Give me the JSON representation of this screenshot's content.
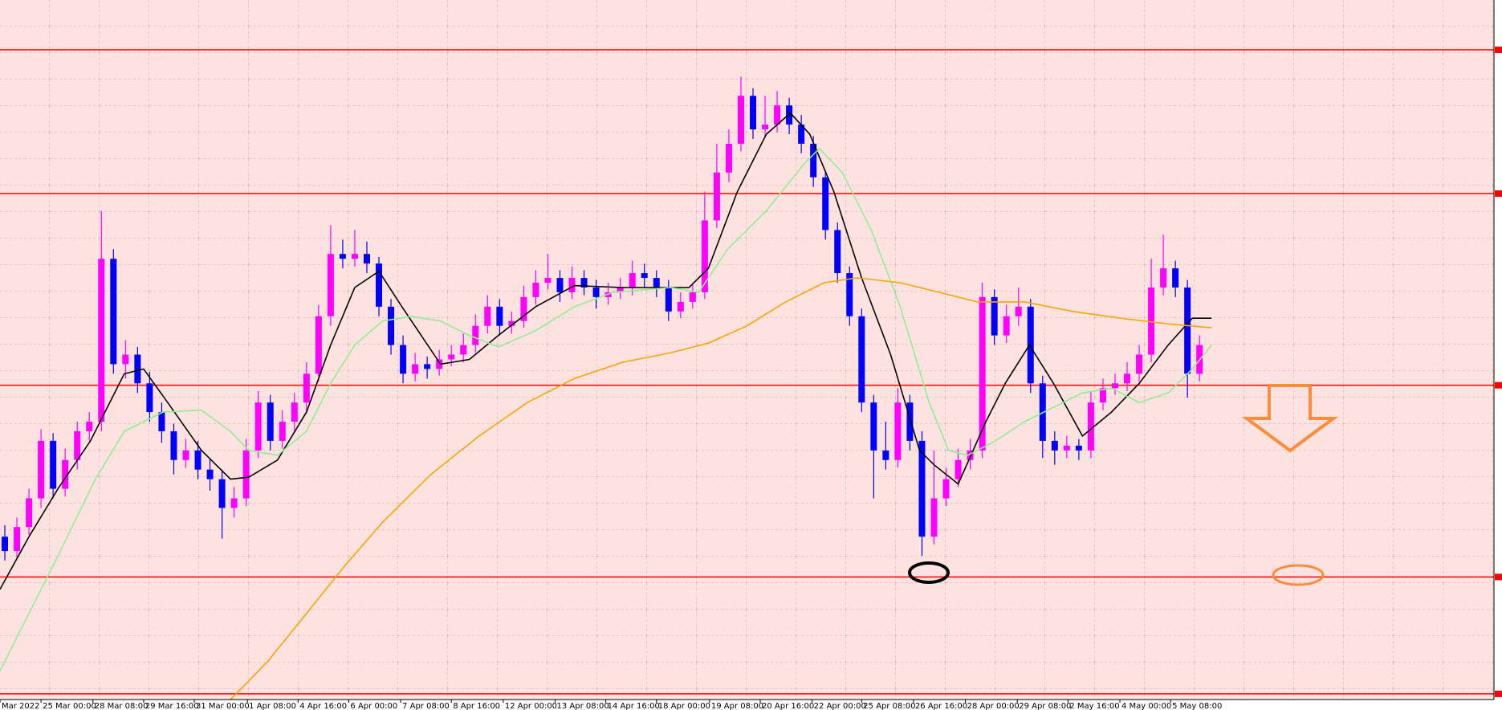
{
  "chart_data": {
    "type": "candlestick",
    "grid": true,
    "up_color": "#ff00ff",
    "down_color": "#0000ff",
    "xlim": [
      -0.4,
      123.4
    ],
    "ylim": [
      0,
      740
    ],
    "xticks": [
      {
        "value": -0.4,
        "label": "Mar 2022"
      },
      {
        "value": 3,
        "label": "25 Mar 00:00"
      },
      {
        "value": 7.3,
        "label": "28 Mar 08:00"
      },
      {
        "value": 11.5,
        "label": "29 Mar 16:00"
      },
      {
        "value": 15.7,
        "label": "31 Mar 00:00"
      },
      {
        "value": 20.1,
        "label": "1 Apr 08:00"
      },
      {
        "value": 24.3,
        "label": "4 Apr 16:00"
      },
      {
        "value": 28.5,
        "label": "6 Apr 00:00"
      },
      {
        "value": 32.8,
        "label": "7 Apr 08:00"
      },
      {
        "value": 37,
        "label": "8 Apr 16:00"
      },
      {
        "value": 41.3,
        "label": "12 Apr 00:00"
      },
      {
        "value": 45.6,
        "label": "13 Apr 08:00"
      },
      {
        "value": 49.8,
        "label": "14 Apr 16:00"
      },
      {
        "value": 54,
        "label": "18 Apr 00:00"
      },
      {
        "value": 58.4,
        "label": "19 Apr 08:00"
      },
      {
        "value": 62.6,
        "label": "20 Apr 16:00"
      },
      {
        "value": 66.9,
        "label": "22 Apr 00:00"
      },
      {
        "value": 71,
        "label": "25 Apr 08:00"
      },
      {
        "value": 75.3,
        "label": "26 Apr 16:00"
      },
      {
        "value": 79.6,
        "label": "28 Apr 00:00"
      },
      {
        "value": 83.9,
        "label": "29 Apr 08:00"
      },
      {
        "value": 88.1,
        "label": "2 May 16:00"
      },
      {
        "value": 92.4,
        "label": "4 May 00:00"
      },
      {
        "value": 96.6,
        "label": "5 May 08:00"
      }
    ],
    "levels": [
      688,
      538,
      338,
      138,
      16
    ],
    "level_color": "#ff0000",
    "ohlc": [
      [
        180,
        192,
        155,
        165
      ],
      [
        165,
        200,
        158,
        190
      ],
      [
        190,
        230,
        182,
        220
      ],
      [
        220,
        292,
        210,
        280
      ],
      [
        280,
        288,
        220,
        230
      ],
      [
        230,
        272,
        222,
        260
      ],
      [
        260,
        300,
        250,
        290
      ],
      [
        290,
        310,
        280,
        300
      ],
      [
        300,
        520,
        290,
        470
      ],
      [
        470,
        480,
        350,
        360
      ],
      [
        360,
        385,
        345,
        370
      ],
      [
        370,
        378,
        330,
        340
      ],
      [
        340,
        352,
        300,
        310
      ],
      [
        310,
        320,
        278,
        290
      ],
      [
        290,
        298,
        245,
        260
      ],
      [
        260,
        282,
        252,
        270
      ],
      [
        270,
        280,
        240,
        250
      ],
      [
        250,
        262,
        228,
        240
      ],
      [
        240,
        250,
        178,
        210
      ],
      [
        210,
        232,
        200,
        220
      ],
      [
        220,
        282,
        212,
        270
      ],
      [
        270,
        332,
        262,
        320
      ],
      [
        320,
        328,
        270,
        280
      ],
      [
        280,
        312,
        272,
        300
      ],
      [
        300,
        330,
        290,
        320
      ],
      [
        320,
        362,
        310,
        350
      ],
      [
        350,
        422,
        342,
        410
      ],
      [
        410,
        505,
        400,
        475
      ],
      [
        475,
        490,
        460,
        470
      ],
      [
        470,
        500,
        462,
        475
      ],
      [
        475,
        488,
        455,
        465
      ],
      [
        465,
        472,
        410,
        420
      ],
      [
        420,
        428,
        370,
        380
      ],
      [
        380,
        390,
        340,
        350
      ],
      [
        350,
        372,
        342,
        360
      ],
      [
        360,
        368,
        345,
        355
      ],
      [
        355,
        375,
        348,
        365
      ],
      [
        365,
        380,
        358,
        370
      ],
      [
        370,
        392,
        362,
        380
      ],
      [
        380,
        412,
        372,
        400
      ],
      [
        400,
        432,
        392,
        420
      ],
      [
        420,
        428,
        390,
        400
      ],
      [
        400,
        415,
        392,
        405
      ],
      [
        405,
        442,
        398,
        430
      ],
      [
        430,
        458,
        422,
        445
      ],
      [
        445,
        475,
        438,
        450
      ],
      [
        450,
        458,
        425,
        435
      ],
      [
        435,
        462,
        428,
        450
      ],
      [
        450,
        458,
        432,
        440
      ],
      [
        440,
        448,
        418,
        430
      ],
      [
        430,
        445,
        422,
        435
      ],
      [
        435,
        450,
        428,
        440
      ],
      [
        440,
        468,
        432,
        455
      ],
      [
        455,
        465,
        440,
        450
      ],
      [
        450,
        458,
        430,
        440
      ],
      [
        440,
        448,
        405,
        415
      ],
      [
        415,
        435,
        408,
        425
      ],
      [
        425,
        445,
        418,
        435
      ],
      [
        435,
        540,
        428,
        510
      ],
      [
        510,
        590,
        502,
        560
      ],
      [
        560,
        605,
        550,
        590
      ],
      [
        590,
        660,
        582,
        640
      ],
      [
        640,
        648,
        595,
        605
      ],
      [
        605,
        640,
        598,
        610
      ],
      [
        610,
        645,
        602,
        630
      ],
      [
        630,
        638,
        600,
        610
      ],
      [
        610,
        620,
        580,
        590
      ],
      [
        590,
        598,
        545,
        555
      ],
      [
        555,
        562,
        490,
        500
      ],
      [
        500,
        508,
        445,
        455
      ],
      [
        455,
        462,
        400,
        410
      ],
      [
        410,
        418,
        310,
        320
      ],
      [
        320,
        328,
        220,
        270
      ],
      [
        270,
        300,
        250,
        260
      ],
      [
        260,
        335,
        252,
        320
      ],
      [
        320,
        328,
        270,
        280
      ],
      [
        280,
        290,
        160,
        180
      ],
      [
        180,
        270,
        172,
        220
      ],
      [
        220,
        252,
        212,
        240
      ],
      [
        240,
        272,
        232,
        260
      ],
      [
        260,
        282,
        250,
        270
      ],
      [
        270,
        445,
        262,
        430
      ],
      [
        430,
        438,
        380,
        390
      ],
      [
        390,
        422,
        382,
        410
      ],
      [
        410,
        440,
        400,
        420
      ],
      [
        420,
        428,
        330,
        340
      ],
      [
        340,
        348,
        262,
        280
      ],
      [
        280,
        290,
        255,
        270
      ],
      [
        270,
        285,
        262,
        275
      ],
      [
        275,
        282,
        260,
        270
      ],
      [
        270,
        332,
        262,
        320
      ],
      [
        320,
        345,
        312,
        335
      ],
      [
        335,
        350,
        328,
        340
      ],
      [
        340,
        362,
        332,
        350
      ],
      [
        350,
        380,
        342,
        370
      ],
      [
        370,
        470,
        362,
        440
      ],
      [
        440,
        495,
        432,
        460
      ],
      [
        460,
        468,
        430,
        440
      ],
      [
        440,
        448,
        325,
        350
      ],
      [
        350,
        390,
        342,
        380
      ]
    ],
    "series": [
      {
        "color": "#000000",
        "x": [
          -0.4,
          2,
          4.4,
          7.1,
          9.9,
          11.5,
          13.5,
          16.3,
          18.7,
          20.2,
          22.6,
          25,
          27,
          29,
          31,
          32.9,
          36.1,
          38.5,
          40.9,
          44,
          47.2,
          51.2,
          54.4,
          56.7,
          58.3,
          60.7,
          63.1,
          65.1,
          66.7,
          68.7,
          71,
          73.4,
          75.8,
          77,
          79,
          81.3,
          82.9,
          84.9,
          86.9,
          89.3,
          91.7,
          94,
          96.4,
          98.4,
          100
        ],
        "values": [
          125,
          180,
          230,
          280,
          350,
          355,
          320,
          270,
          240,
          242,
          260,
          310,
          380,
          440,
          457,
          420,
          360,
          365,
          390,
          420,
          442,
          440,
          440,
          440,
          460,
          540,
          600,
          622,
          600,
          540,
          450,
          370,
          270,
          255,
          235,
          300,
          340,
          380,
          340,
          285,
          310,
          340,
          380,
          408,
          408
        ]
      },
      {
        "color": "#90ee90",
        "x": [
          -0.4,
          2,
          4.4,
          7.5,
          9.9,
          13.1,
          16.3,
          18.7,
          20.2,
          22.6,
          25,
          27,
          29,
          31.3,
          33.7,
          36.1,
          38.5,
          40.9,
          44,
          47.2,
          50.4,
          55.2,
          57.5,
          59.9,
          63.1,
          66.3,
          67.5,
          69.4,
          71.8,
          74.2,
          76.6,
          78.2,
          79.8,
          82.1,
          84.5,
          86.9,
          89.3,
          91.7,
          94,
          96.4,
          98.4,
          100
        ],
        "values": [
          40,
          100,
          160,
          240,
          290,
          310,
          312,
          290,
          270,
          265,
          290,
          340,
          380,
          405,
          410,
          405,
          390,
          378,
          395,
          420,
          435,
          440,
          435,
          480,
          520,
          570,
          585,
          560,
          500,
          420,
          320,
          270,
          265,
          280,
          300,
          315,
          330,
          335,
          320,
          330,
          355,
          380
        ]
      },
      {
        "color": "#ffa500",
        "x": [
          18.7,
          21.8,
          25,
          28.2,
          31.3,
          35.3,
          39.3,
          43.3,
          47.2,
          51.2,
          55.2,
          58.3,
          61.5,
          64.7,
          67.9,
          70.6,
          74.2,
          77.4,
          80.6,
          84.5,
          88.5,
          92.5,
          96.4,
          100
        ],
        "values": [
          10,
          50,
          100,
          150,
          195,
          245,
          285,
          320,
          345,
          362,
          372,
          382,
          400,
          425,
          445,
          450,
          445,
          435,
          425,
          425,
          415,
          408,
          402,
          398
        ]
      }
    ]
  }
}
